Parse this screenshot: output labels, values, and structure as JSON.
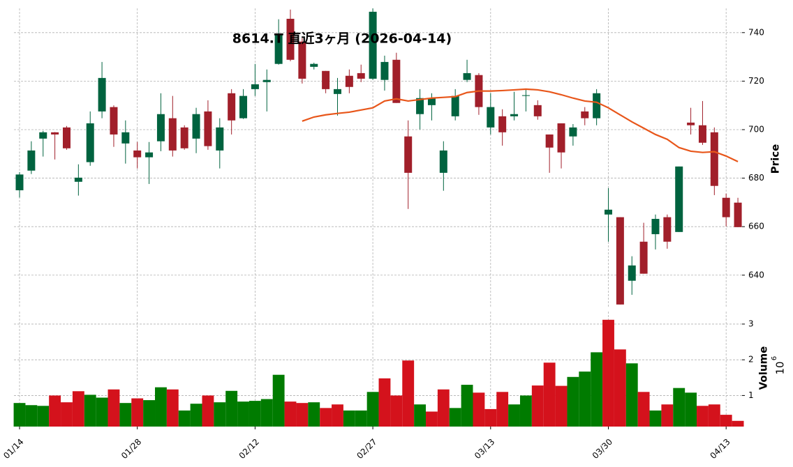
{
  "chart_data": {
    "type": "candlestick",
    "title": "8614.T 直近3ヶ月 (2026-04-14)",
    "categories": [
      "01/14",
      null,
      null,
      null,
      null,
      null,
      null,
      null,
      null,
      null,
      "01/28",
      null,
      null,
      null,
      null,
      null,
      null,
      null,
      null,
      null,
      "02/12",
      null,
      null,
      null,
      null,
      null,
      null,
      null,
      null,
      null,
      "02/27",
      null,
      null,
      null,
      null,
      null,
      null,
      null,
      null,
      null,
      "03/13",
      null,
      null,
      null,
      null,
      null,
      null,
      null,
      null,
      null,
      "03/30",
      null,
      null,
      null,
      null,
      null,
      null,
      null,
      null,
      null,
      "04/13",
      null
    ],
    "open": [
      675,
      683.1,
      696.3,
      698.9,
      700.9,
      678.5,
      686.6,
      707.5,
      709.3,
      694.3,
      691.4,
      688.6,
      695.2,
      704.7,
      700.9,
      696.3,
      707.5,
      691.4,
      715,
      704.7,
      716.7,
      719.6,
      727.1,
      745.7,
      736.3,
      725.9,
      724.2,
      714.7,
      722.2,
      723.3,
      721,
      720.5,
      728.8,
      697.2,
      706.4,
      710.1,
      682.2,
      705.5,
      720.5,
      722.5,
      700.9,
      705.5,
      705.5,
      713.9,
      710.1,
      698,
      702.6,
      697.2,
      707.5,
      704.7,
      665,
      663.9,
      637.7,
      653.8,
      656.9,
      663.9,
      657.8,
      702.9,
      701.8,
      698.9,
      671.9,
      669.9
    ],
    "high": [
      682.5,
      695.2,
      699.5,
      699,
      701.5,
      685.7,
      707.5,
      727.9,
      710,
      703.8,
      694.9,
      694.9,
      715,
      713.9,
      701.8,
      709,
      712.1,
      704.7,
      716.7,
      716.7,
      727.1,
      724.8,
      745.5,
      749.5,
      737.7,
      727.6,
      724.2,
      721.3,
      724.8,
      726.8,
      750,
      730.5,
      731.7,
      703.8,
      716.7,
      715,
      695.2,
      716.7,
      728.8,
      723.3,
      715,
      708.4,
      715.6,
      716.7,
      712.1,
      698,
      702.6,
      702.3,
      709.3,
      716.7,
      675.9,
      663.9,
      647.8,
      661.6,
      665,
      665,
      684.8,
      709,
      711.8,
      700.9,
      673.6,
      671.9
    ],
    "low": [
      672,
      681.7,
      688.9,
      687.7,
      691.7,
      672.8,
      685.1,
      704.7,
      692.9,
      686,
      684,
      677.6,
      691.1,
      688.9,
      691.7,
      690.3,
      691.7,
      684,
      698,
      704.4,
      713.9,
      707.5,
      726.8,
      728.2,
      719,
      724.8,
      715,
      705.8,
      715,
      719.6,
      720.5,
      716.1,
      711,
      667.3,
      700.1,
      703.8,
      674.8,
      703.8,
      719.6,
      706.1,
      698,
      693.4,
      703.8,
      707.5,
      704.1,
      682.2,
      684,
      693.4,
      701.8,
      701.8,
      653.8,
      627.9,
      631.9,
      640.6,
      650.6,
      650.9,
      657.8,
      698,
      693.7,
      673,
      660.1,
      659.8
    ],
    "close": [
      681.5,
      691.4,
      698.9,
      698,
      692.3,
      680.2,
      702.6,
      721.3,
      698,
      698.9,
      688.6,
      690.6,
      706.4,
      691.4,
      692.3,
      706.4,
      693.2,
      700.9,
      703.8,
      713.9,
      718.7,
      720.5,
      739.1,
      728.8,
      721,
      727.1,
      716.7,
      716.7,
      717.6,
      721,
      748.6,
      727.9,
      711,
      682.2,
      713,
      713,
      691.4,
      713.9,
      723.3,
      709.3,
      709.3,
      698.9,
      706.4,
      714.2,
      705.5,
      692.6,
      690.6,
      700.9,
      704.7,
      715,
      667,
      627.9,
      644,
      640.6,
      663.2,
      653.8,
      684.8,
      701.8,
      694.6,
      676.8,
      663.9,
      659.8
    ],
    "volume": [
      0.79,
      0.73,
      0.71,
      1,
      0.81,
      1.12,
      1.02,
      0.94,
      1.17,
      0.79,
      0.92,
      0.87,
      1.23,
      1.17,
      0.58,
      0.77,
      1,
      0.81,
      1.13,
      0.83,
      0.85,
      0.9,
      1.58,
      0.83,
      0.79,
      0.81,
      0.65,
      0.75,
      0.58,
      0.58,
      1.1,
      1.48,
      1,
      1.98,
      0.75,
      0.55,
      1.17,
      0.65,
      1.3,
      1.08,
      0.62,
      1.1,
      0.75,
      1,
      1.28,
      1.92,
      1.27,
      1.52,
      1.67,
      2.21,
      3.12,
      2.29,
      1.9,
      1.1,
      0.58,
      0.75,
      1.21,
      1.08,
      0.71,
      0.75,
      0.46,
      0.29
    ],
    "ma": [
      null,
      null,
      null,
      null,
      null,
      null,
      null,
      null,
      null,
      null,
      null,
      null,
      null,
      null,
      null,
      null,
      null,
      null,
      null,
      null,
      null,
      null,
      null,
      null,
      703.5,
      705.2,
      706.1,
      706.7,
      707.2,
      708.1,
      709,
      711.8,
      712.7,
      711.8,
      712.4,
      713,
      713.3,
      713.6,
      715.3,
      715.9,
      715.9,
      716.1,
      716.4,
      716.7,
      716.4,
      715.6,
      714.4,
      713,
      711.8,
      711.3,
      709,
      706.1,
      703.2,
      700.6,
      698,
      696,
      692.6,
      691.1,
      690.6,
      690.9,
      689.1,
      686.8
    ],
    "ylabel": "Price",
    "ylim": [
      627,
      750
    ],
    "yticks": [
      640,
      660,
      680,
      700,
      720,
      740
    ],
    "volume_label": "Volume",
    "volume_offset_base": "10",
    "volume_offset_exponent": "6",
    "volume_ylim": [
      0.13,
      3.35
    ],
    "volume_yticks": [
      1,
      2,
      3
    ],
    "up_color": "#00633f",
    "down_color": "#a11f2a",
    "volume_up_color": "#007b00",
    "volume_down_color": "#d4121c",
    "ma_color": "#e8561a",
    "grid": true
  }
}
